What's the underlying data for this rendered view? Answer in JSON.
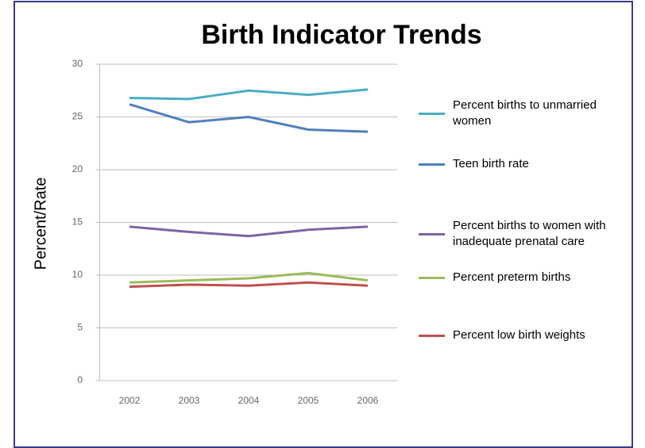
{
  "chart_data": {
    "type": "line",
    "title": "Birth Indicator Trends",
    "ylabel": "Percent/Rate",
    "categories": [
      "2002",
      "2003",
      "2004",
      "2005",
      "2006"
    ],
    "series": [
      {
        "name": "Percent births to unmarried women",
        "color": "#4bacc6",
        "values": [
          26.8,
          26.7,
          27.5,
          27.1,
          27.6
        ]
      },
      {
        "name": "Teen birth rate",
        "color": "#4f81bd",
        "values": [
          26.2,
          24.5,
          25.0,
          23.8,
          23.6
        ]
      },
      {
        "name": "Percent births to women with inadequate prenatal care",
        "color": "#8064a2",
        "values": [
          14.6,
          14.1,
          13.7,
          14.3,
          14.6
        ]
      },
      {
        "name": "Percent preterm births",
        "color": "#9bbb59",
        "values": [
          9.3,
          9.5,
          9.7,
          10.2,
          9.5
        ]
      },
      {
        "name": "Percent low birth weights",
        "color": "#c0504d",
        "values": [
          8.9,
          9.1,
          9.0,
          9.3,
          9.0
        ]
      }
    ],
    "ylim": [
      0,
      30
    ],
    "yticks": [
      0,
      5,
      10,
      15,
      20,
      25,
      30
    ],
    "grid": true,
    "legend": "right"
  }
}
